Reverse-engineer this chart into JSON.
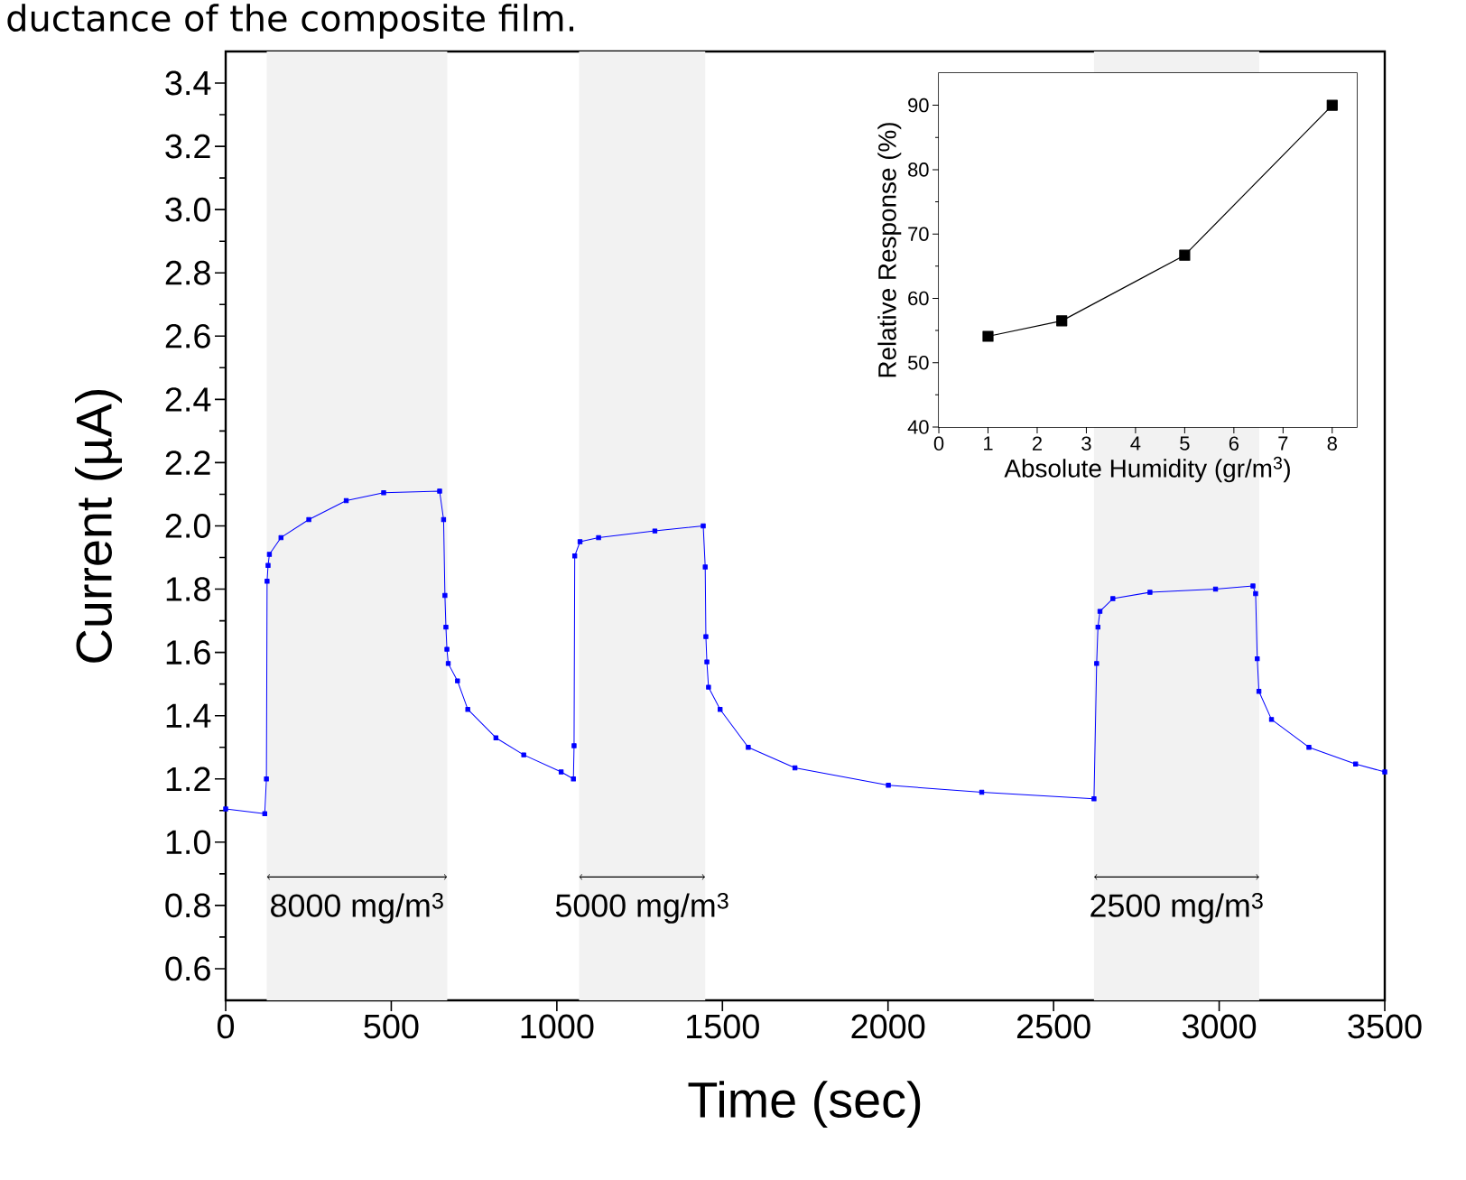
{
  "chart_data": [
    {
      "type": "line",
      "xlabel": "Time (sec)",
      "ylabel": "Current (µA)",
      "marker": "square",
      "annotations": [
        "ductance of the composite film."
      ],
      "xlim": [
        0,
        3500
      ],
      "ylim": [
        0.5,
        3.5
      ],
      "xticks": [
        0,
        500,
        1000,
        1500,
        2000,
        2500,
        3000,
        3500
      ],
      "yticks": [
        0.6,
        0.8,
        {
          "value": 1,
          "label": "1.0"
        },
        1.2,
        1.4,
        1.6,
        1.8,
        {
          "value": 2,
          "label": "2.0"
        },
        2.2,
        2.4,
        2.6,
        2.8,
        {
          "value": 3,
          "label": "3.0"
        },
        3.2,
        3.4
      ],
      "bands": [
        {
          "axis": "x",
          "from": 124,
          "to": 669,
          "label": "8000 mg/m$^{3}$"
        },
        {
          "axis": "x",
          "from": 1067,
          "to": 1448,
          "label": "5000 mg/m$^{3}$"
        },
        {
          "axis": "x",
          "from": 2622,
          "to": 3121,
          "label": "2500 mg/m$^{3}$"
        }
      ],
      "series": [
        {
          "color": "#0000ff",
          "x": [
            0,
            118,
            123,
            125,
            128,
            132,
            167,
            251,
            364,
            477,
            646,
            658,
            662,
            665,
            668,
            672,
            700,
            731,
            816,
            900,
            1013,
            1050,
            1052,
            1054,
            1070,
            1126,
            1296,
            1442,
            1448,
            1450,
            1453,
            1458,
            1493,
            1578,
            1719,
            2001,
            2283,
            2622,
            2630,
            2634,
            2640,
            2679,
            2791,
            2989,
            3102,
            3110,
            3115,
            3120,
            3158,
            3271,
            3412,
            3500
          ],
          "values": [
            1.105,
            1.09,
            1.2,
            1.825,
            1.875,
            1.91,
            1.963,
            2.02,
            2.08,
            2.105,
            2.11,
            2.02,
            1.78,
            1.68,
            1.61,
            1.565,
            1.51,
            1.42,
            1.33,
            1.276,
            1.222,
            1.2,
            1.305,
            1.905,
            1.95,
            1.963,
            1.984,
            2.0,
            1.87,
            1.65,
            1.57,
            1.49,
            1.42,
            1.3,
            1.235,
            1.18,
            1.158,
            1.137,
            1.565,
            1.68,
            1.73,
            1.77,
            1.79,
            1.8,
            1.81,
            1.786,
            1.58,
            1.477,
            1.388,
            1.3,
            1.247,
            1.222
          ]
        }
      ]
    },
    {
      "type": "line",
      "xlabel": "Absolute Humidity (gr/m$^{3}$)",
      "ylabel": "Relative Response (%)",
      "marker": "square",
      "xlim": [
        0,
        8.5
      ],
      "ylim": [
        40,
        95
      ],
      "xticks": [
        0,
        1,
        2,
        3,
        4,
        5,
        6,
        7,
        8
      ],
      "yticks": [
        40,
        50,
        60,
        70,
        80,
        90
      ],
      "series": [
        {
          "color": "#000000",
          "x": [
            1,
            2.5,
            5,
            8
          ],
          "values": [
            54.1,
            56.5,
            66.7,
            90
          ]
        }
      ]
    }
  ]
}
